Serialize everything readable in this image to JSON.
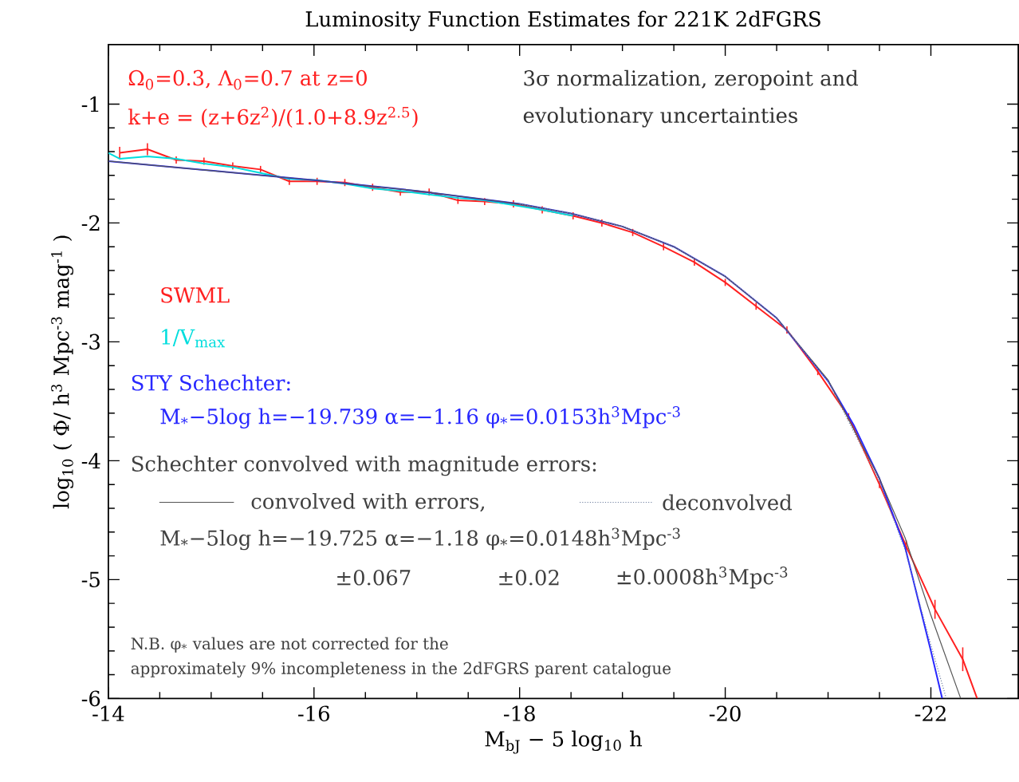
{
  "chart_data": {
    "type": "line",
    "title": "Luminosity Function Estimates for 221K 2dFGRS",
    "xlabel": "M$_{bJ}$ − 5 log$_{10}$ h",
    "ylabel": "log$_{10}$ ( Φ/ h$^{3}$ Mpc$^{-3}$ mag$^{-1}$ )",
    "xlim": [
      -14,
      -22.85
    ],
    "ylim": [
      -6,
      -0.5
    ],
    "xticks": [
      -14,
      -16,
      -18,
      -20,
      -22
    ],
    "yticks": [
      -6,
      -5,
      -4,
      -3,
      -2,
      -1
    ],
    "marker": "none",
    "legend": "left",
    "series": [
      {
        "name": "SWML",
        "color": "#ff2020",
        "x": [
          -14.11,
          -14.38,
          -14.66,
          -14.93,
          -15.21,
          -15.48,
          -15.76,
          -16.03,
          -16.3,
          -16.57,
          -16.84,
          -17.12,
          -17.4,
          -17.66,
          -17.94,
          -18.22,
          -18.52,
          -18.8,
          -19.1,
          -19.4,
          -19.7,
          -20.0,
          -20.3,
          -20.6,
          -20.9,
          -21.2,
          -21.5,
          -21.76,
          -22.04,
          -22.31,
          -22.45
        ],
        "values": [
          -1.41,
          -1.38,
          -1.47,
          -1.48,
          -1.52,
          -1.55,
          -1.65,
          -1.65,
          -1.66,
          -1.7,
          -1.74,
          -1.74,
          -1.81,
          -1.82,
          -1.84,
          -1.89,
          -1.94,
          -2.0,
          -2.08,
          -2.2,
          -2.33,
          -2.5,
          -2.7,
          -2.9,
          -3.25,
          -3.63,
          -4.2,
          -4.72,
          -5.25,
          -5.67,
          -6.0
        ],
        "errors": [
          0.05,
          0.05,
          0.03,
          0.03,
          0.03,
          0.03,
          0.03,
          0.03,
          0.03,
          0.03,
          0.03,
          0.03,
          0.03,
          0.03,
          0.03,
          0.03,
          0.03,
          0.03,
          0.03,
          0.03,
          0.03,
          0.03,
          0.03,
          0.03,
          0.03,
          0.03,
          0.03,
          0.05,
          0.08,
          0.1,
          null
        ]
      },
      {
        "name": "1/V$_{max}$",
        "color": "#00dddd",
        "x": [
          -14.0,
          -14.11,
          -14.38,
          -14.66,
          -14.93,
          -15.21,
          -15.48,
          -15.76,
          -16.03,
          -16.3,
          -16.57,
          -16.84,
          -17.12,
          -17.4,
          -17.66,
          -17.94,
          -18.22,
          -18.52
        ],
        "values": [
          -1.41,
          -1.46,
          -1.44,
          -1.46,
          -1.5,
          -1.53,
          -1.58,
          -1.63,
          -1.64,
          -1.67,
          -1.71,
          -1.73,
          -1.76,
          -1.79,
          -1.81,
          -1.85,
          -1.89,
          -1.94
        ]
      },
      {
        "name": "STY Schechter:",
        "color": "#2828ff",
        "x": [
          -14,
          -15,
          -16,
          -17,
          -18,
          -18.5,
          -19,
          -19.5,
          -20,
          -20.5,
          -21,
          -21.25,
          -21.5,
          -21.75,
          -22,
          -22.11
        ],
        "values": [
          -1.48,
          -1.56,
          -1.64,
          -1.73,
          -1.84,
          -1.92,
          -2.03,
          -2.2,
          -2.45,
          -2.8,
          -3.33,
          -3.7,
          -4.15,
          -4.73,
          -5.6,
          -6.0
        ]
      },
      {
        "name": "convolved with errors,",
        "color": "#555555",
        "line_style": "solid",
        "x": [
          -14,
          -15,
          -16,
          -17,
          -18,
          -18.5,
          -19,
          -19.5,
          -20,
          -20.5,
          -21,
          -21.5,
          -21.75,
          -22,
          -22.29
        ],
        "values": [
          -1.48,
          -1.56,
          -1.64,
          -1.73,
          -1.84,
          -1.92,
          -2.03,
          -2.2,
          -2.45,
          -2.8,
          -3.32,
          -4.15,
          -4.65,
          -5.3,
          -6.0
        ]
      },
      {
        "name": "deconvolved",
        "color": "#7080a0",
        "line_style": "dotted",
        "x": [
          -18,
          -18.5,
          -19,
          -19.5,
          -20,
          -20.5,
          -21,
          -21.5,
          -21.75,
          -22,
          -22.15
        ],
        "values": [
          -1.84,
          -1.92,
          -2.03,
          -2.2,
          -2.45,
          -2.8,
          -3.33,
          -4.18,
          -4.75,
          -5.55,
          -6.0
        ]
      }
    ],
    "annotations": [
      "Ω$_{0}$=0.3, Λ$_{0}$=0.7 at z=0",
      "k+e = (z+6z$^{2}$)/(1.0+8.9z$^{2.5}$)",
      "3σ normalization, zeropoint and",
      "evolutionary uncertainties",
      "M$_{*}$−5log h=−19.739 α=−1.16 φ$_{*}$=0.0153h$^{3}$Mpc$^{-3}$",
      "Schechter convolved with magnitude errors:",
      "M$_{*}$−5log h=−19.725 α=−1.18 φ$_{*}$=0.0148h$^{3}$Mpc$^{-3}$",
      "±0.067",
      "±0.02",
      "±0.0008h$^{3}$Mpc$^{-3}$",
      "N.B. φ$_{*}$ values are not corrected for the",
      "approximately 9% incompleteness in the 2dFGRS parent catalogue"
    ]
  }
}
